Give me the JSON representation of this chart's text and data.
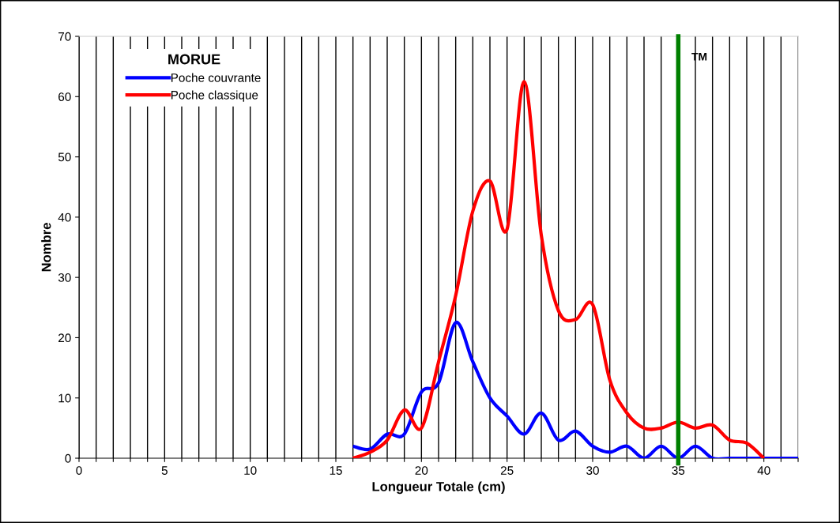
{
  "chart_data": {
    "type": "line",
    "xlabel": "Longueur Totale (cm)",
    "ylabel": "Nombre",
    "legend_title": "MORUE",
    "x": [
      16,
      17,
      18,
      19,
      20,
      21,
      22,
      23,
      24,
      25,
      26,
      27,
      28,
      29,
      30,
      31,
      32,
      33,
      34,
      35,
      36,
      37,
      38,
      39,
      40,
      41,
      42
    ],
    "series": [
      {
        "name": "Poche couvrante",
        "color": "#0000ff",
        "values": [
          2,
          1.5,
          4,
          4,
          11,
          12.5,
          22.5,
          16,
          10,
          7,
          4,
          7.5,
          3,
          4.5,
          2,
          1,
          2,
          0,
          2,
          0,
          2,
          0,
          0,
          0,
          0,
          0,
          0
        ]
      },
      {
        "name": "Poche classique",
        "color": "#ff0000",
        "values": [
          0,
          1,
          3,
          8,
          5,
          16,
          27,
          41,
          46,
          38,
          62.5,
          37,
          24.5,
          23,
          25.5,
          13,
          7.5,
          5,
          5,
          6,
          5,
          5.5,
          3,
          2.5,
          0,
          null,
          null
        ]
      }
    ],
    "xlim": [
      0,
      42
    ],
    "ylim": [
      0,
      70
    ],
    "xticks": [
      0,
      {
        "value": 1,
        "label": null
      },
      {
        "value": 2,
        "label": null
      },
      {
        "value": 3,
        "label": null
      },
      {
        "value": 4,
        "label": null
      },
      5,
      {
        "value": 6,
        "label": null
      },
      {
        "value": 7,
        "label": null
      },
      {
        "value": 8,
        "label": null
      },
      {
        "value": 9,
        "label": null
      },
      10,
      {
        "value": 11,
        "label": null
      },
      {
        "value": 12,
        "label": null
      },
      {
        "value": 13,
        "label": null
      },
      {
        "value": 14,
        "label": null
      },
      15,
      {
        "value": 16,
        "label": null
      },
      {
        "value": 17,
        "label": null
      },
      {
        "value": 18,
        "label": null
      },
      {
        "value": 19,
        "label": null
      },
      20,
      {
        "value": 21,
        "label": null
      },
      {
        "value": 22,
        "label": null
      },
      {
        "value": 23,
        "label": null
      },
      {
        "value": 24,
        "label": null
      },
      25,
      {
        "value": 26,
        "label": null
      },
      {
        "value": 27,
        "label": null
      },
      {
        "value": 28,
        "label": null
      },
      {
        "value": 29,
        "label": null
      },
      30,
      {
        "value": 31,
        "label": null
      },
      {
        "value": 32,
        "label": null
      },
      {
        "value": 33,
        "label": null
      },
      {
        "value": 34,
        "label": null
      },
      35,
      {
        "value": 36,
        "label": null
      },
      {
        "value": 37,
        "label": null
      },
      {
        "value": 38,
        "label": null
      },
      {
        "value": 39,
        "label": null
      },
      40,
      {
        "value": 41,
        "label": null
      },
      {
        "value": 42,
        "label": null
      }
    ],
    "yticks": [
      0,
      10,
      20,
      30,
      40,
      50,
      60,
      70
    ],
    "grid": "x",
    "legend": "top left",
    "marker": "none",
    "line_style": "solid",
    "ref_lines": [
      {
        "axis": "x",
        "value": 35,
        "label": "TM",
        "color": "#008000"
      }
    ]
  }
}
